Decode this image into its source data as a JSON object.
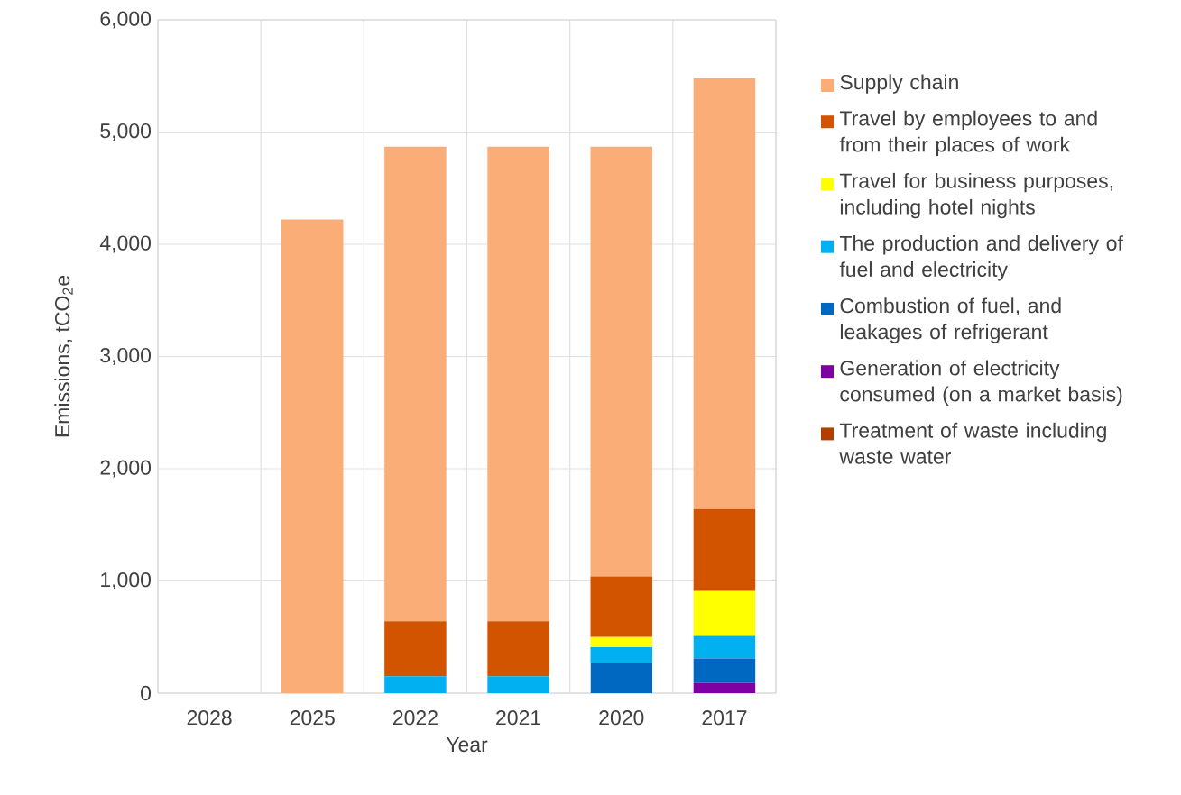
{
  "chart_data": {
    "type": "bar",
    "stacked": true,
    "xlabel": "Year",
    "ylabel": "Emissions, tCO$_{2}$e",
    "categories": [
      "2028",
      "2025",
      "2022",
      "2021",
      "2020",
      "2017"
    ],
    "series": [
      {
        "name": "Treatment of waste including waste water",
        "color": "#b04000",
        "values": [
          0,
          0,
          0,
          0,
          0,
          0
        ]
      },
      {
        "name": "Generation of electricity consumed (on a market basis)",
        "color": "#7f00a3",
        "values": [
          0,
          0,
          0,
          0,
          0,
          90
        ]
      },
      {
        "name": "Combustion of fuel, and leakages of refrigerant",
        "color": "#0068c0",
        "values": [
          0,
          0,
          0,
          0,
          270,
          220
        ]
      },
      {
        "name": "The production and delivery of fuel and electricity",
        "color": "#00b0f0",
        "values": [
          0,
          0,
          150,
          150,
          140,
          200
        ]
      },
      {
        "name": "Travel for business purposes, including hotel nights",
        "color": "#ffff00",
        "values": [
          0,
          0,
          0,
          0,
          90,
          400
        ]
      },
      {
        "name": "Travel by employees to and from their places of work",
        "color": "#d35400",
        "values": [
          0,
          0,
          490,
          490,
          540,
          730
        ]
      },
      {
        "name": "Supply chain",
        "color": "#fbad78",
        "values": [
          0,
          4220,
          4230,
          4230,
          3830,
          3840
        ]
      }
    ],
    "ylim": [
      0,
      6000
    ],
    "yticks": [
      0,
      {
        "value": 1000,
        "label": "1,000"
      },
      {
        "value": 2000,
        "label": "2,000"
      },
      {
        "value": 3000,
        "label": "3,000"
      },
      {
        "value": 4000,
        "label": "4,000"
      },
      {
        "value": 5000,
        "label": "5,000"
      },
      {
        "value": 6000,
        "label": "6,000"
      }
    ],
    "grid": true,
    "legend": "right"
  }
}
